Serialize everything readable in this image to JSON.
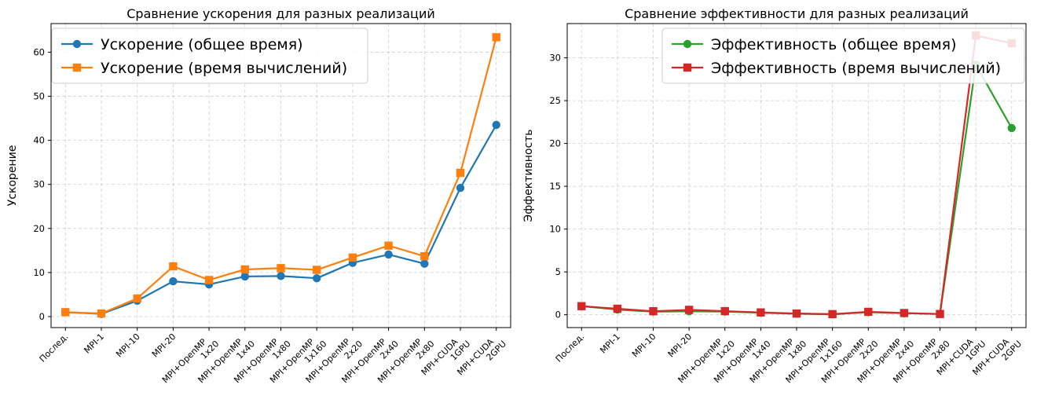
{
  "chart_data": [
    {
      "type": "line",
      "title": "Сравнение ускорения для разных реализаций",
      "xlabel": "",
      "ylabel": "Ускорение",
      "categories": [
        "Послед.",
        "MPI-1",
        "MPI-10",
        "MPI-20",
        "MPI+OpenMP\n1x20",
        "MPI+OpenMP\n1x40",
        "MPI+OpenMP\n1x80",
        "MPI+OpenMP\n1x160",
        "MPI+OpenMP\n2x20",
        "MPI+OpenMP\n2x40",
        "MPI+OpenMP\n2x80",
        "MPI+CUDA\n1GPU",
        "MPI+CUDA\n2GPU"
      ],
      "ylim": [
        -2.5,
        66.5
      ],
      "yticks": [
        0,
        10,
        20,
        30,
        40,
        50,
        60
      ],
      "grid": true,
      "legend_position": "top-left",
      "series": [
        {
          "name": "Ускорение (общее время)",
          "color": "#1f77b4",
          "marker": "circle",
          "values": [
            1.0,
            0.6,
            3.6,
            8.0,
            7.3,
            9.1,
            9.2,
            8.7,
            12.2,
            14.1,
            12.0,
            29.2,
            43.5
          ]
        },
        {
          "name": "Ускорение (время вычислений)",
          "color": "#ff7f0e",
          "marker": "square",
          "values": [
            1.0,
            0.7,
            4.1,
            11.4,
            8.3,
            10.7,
            11.0,
            10.6,
            13.4,
            16.1,
            13.7,
            32.6,
            63.4
          ]
        }
      ]
    },
    {
      "type": "line",
      "title": "Сравнение эффективности для разных реализаций",
      "xlabel": "",
      "ylabel": "Эффективность",
      "categories": [
        "Послед.",
        "MPI-1",
        "MPI-10",
        "MPI-20",
        "MPI+OpenMP\n1x20",
        "MPI+OpenMP\n1x40",
        "MPI+OpenMP\n1x80",
        "MPI+OpenMP\n1x160",
        "MPI+OpenMP\n2x20",
        "MPI+OpenMP\n2x40",
        "MPI+OpenMP\n2x80",
        "MPI+CUDA\n1GPU",
        "MPI+CUDA\n2GPU"
      ],
      "ylim": [
        -1.5,
        34.0
      ],
      "yticks": [
        0,
        5,
        10,
        15,
        20,
        25,
        30
      ],
      "grid": true,
      "legend_position": "top-right",
      "series": [
        {
          "name": "Эффективность (общее время)",
          "color": "#2ca02c",
          "marker": "circle",
          "values": [
            1.0,
            0.6,
            0.36,
            0.4,
            0.37,
            0.23,
            0.12,
            0.05,
            0.3,
            0.18,
            0.08,
            29.2,
            21.8
          ]
        },
        {
          "name": "Эффективность (время вычислений)",
          "color": "#d62728",
          "marker": "square",
          "values": [
            1.0,
            0.7,
            0.41,
            0.57,
            0.42,
            0.27,
            0.14,
            0.07,
            0.34,
            0.2,
            0.09,
            32.6,
            31.7
          ]
        }
      ]
    }
  ]
}
